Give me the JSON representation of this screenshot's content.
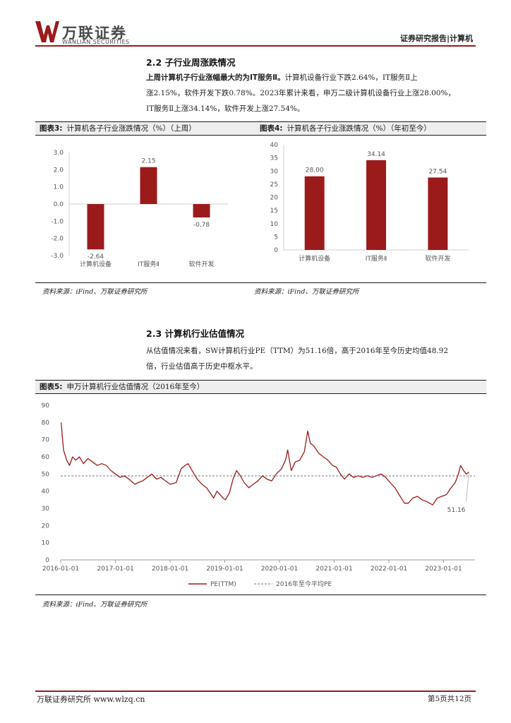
{
  "header": {
    "logo_cn": "万联证券",
    "logo_en": "WANLIAN SECURITIES",
    "report_tag": "证券研究报告|计算机",
    "brand_color": "#9b1b1b"
  },
  "section_2_2": {
    "title": "2.2  子行业周涨跌情况",
    "lead": "上周计算机子行业涨幅最大的为IT服务Ⅱ。",
    "body_1": "计算机设备行业下跌2.64%，IT服务Ⅱ上",
    "body_2": "涨2.15%，软件开发下跌0.78%。2023年累计来看，申万二级计算机设备行业上涨28.00%，",
    "body_3": "IT服务Ⅱ上涨34.14%，软件开发上涨27.54%。"
  },
  "figure3": {
    "label": "图表3:",
    "title": "计算机各子行业涨跌情况（%）（上周）",
    "source": "资料来源：iFind、万联证券研究所"
  },
  "figure4": {
    "label": "图表4:",
    "title": "计算机各子行业涨跌情况（%）（年初至今）",
    "source": "资料来源：iFind、万联证券研究所"
  },
  "section_2_3": {
    "title": "2.3  计算机行业估值情况",
    "body_1": "从估值情况来看，SW计算机行业PE（TTM）为51.16倍，高于2016年至今历史均值48.92",
    "body_2": "倍，行业估值高于历史中枢水平。"
  },
  "figure5": {
    "label": "图表5:",
    "title": "申万计算机行业估值情况（2016年至今）",
    "source": "资料来源：iFind、万联证券研究所"
  },
  "footer": {
    "left": "万联证券研究所  www.wlzq.cn",
    "right": "第5页共12页"
  },
  "chart_data": [
    {
      "type": "bar",
      "categories": [
        "计算机设备",
        "IT服务Ⅱ",
        "软件开发"
      ],
      "values": [
        -2.64,
        2.15,
        -0.78
      ],
      "value_labels": [
        "-2.64",
        "2.15",
        "-0.78"
      ],
      "ylim": [
        -3.0,
        3.0
      ],
      "yticks": [
        3.0,
        2.0,
        1.0,
        0.0,
        -1.0,
        -2.0,
        -3.0
      ],
      "ytick_labels": [
        "3.0",
        "2.0",
        "1.0",
        "0.0",
        "-1.0",
        "-2.0",
        "-3.0"
      ],
      "color": "#9b1b1b",
      "grid": false
    },
    {
      "type": "bar",
      "categories": [
        "计算机设备",
        "IT服务Ⅱ",
        "软件开发"
      ],
      "values": [
        28.0,
        34.14,
        27.54
      ],
      "value_labels": [
        "28.00",
        "34.14",
        "27.54"
      ],
      "ylim": [
        0,
        40
      ],
      "yticks": [
        40,
        35,
        30,
        25,
        20,
        15,
        10,
        5,
        0
      ],
      "color": "#9b1b1b",
      "grid": false
    },
    {
      "type": "line",
      "x_tick_labels": [
        "2016-01-01",
        "2017-01-01",
        "2018-01-01",
        "2019-01-01",
        "2020-01-01",
        "2021-01-01",
        "2022-01-01",
        "2023-01-01"
      ],
      "ylim": [
        0,
        90
      ],
      "yticks": [
        90,
        80,
        70,
        60,
        50,
        40,
        30,
        20,
        10,
        0
      ],
      "series": [
        {
          "name": "PE(TTM)",
          "color": "#9b1b1b",
          "points": [
            [
              "2016-01-04",
              80
            ],
            [
              "2016-01-20",
              64
            ],
            [
              "2016-02-10",
              58
            ],
            [
              "2016-02-29",
              55
            ],
            [
              "2016-03-20",
              60
            ],
            [
              "2016-04-10",
              58
            ],
            [
              "2016-05-05",
              60
            ],
            [
              "2016-06-01",
              56
            ],
            [
              "2016-07-01",
              59
            ],
            [
              "2016-08-01",
              57
            ],
            [
              "2016-09-01",
              55
            ],
            [
              "2016-10-01",
              56
            ],
            [
              "2016-11-01",
              55
            ],
            [
              "2016-12-01",
              52
            ],
            [
              "2017-01-01",
              50
            ],
            [
              "2017-02-01",
              48
            ],
            [
              "2017-03-01",
              49
            ],
            [
              "2017-04-01",
              47
            ],
            [
              "2017-05-10",
              44
            ],
            [
              "2017-06-01",
              45
            ],
            [
              "2017-07-01",
              46
            ],
            [
              "2017-08-01",
              48
            ],
            [
              "2017-09-01",
              50
            ],
            [
              "2017-10-01",
              47
            ],
            [
              "2017-11-01",
              48
            ],
            [
              "2017-12-01",
              46
            ],
            [
              "2018-01-01",
              44
            ],
            [
              "2018-02-10",
              45
            ],
            [
              "2018-03-15",
              53
            ],
            [
              "2018-04-10",
              55
            ],
            [
              "2018-05-01",
              56
            ],
            [
              "2018-06-10",
              50
            ],
            [
              "2018-07-01",
              47
            ],
            [
              "2018-08-01",
              44
            ],
            [
              "2018-09-01",
              42
            ],
            [
              "2018-10-18",
              36
            ],
            [
              "2018-11-10",
              40
            ],
            [
              "2018-12-20",
              36
            ],
            [
              "2019-01-05",
              35
            ],
            [
              "2019-02-01",
              39
            ],
            [
              "2019-02-25",
              47
            ],
            [
              "2019-03-20",
              52
            ],
            [
              "2019-04-15",
              49
            ],
            [
              "2019-05-10",
              45
            ],
            [
              "2019-06-10",
              42
            ],
            [
              "2019-07-10",
              44
            ],
            [
              "2019-08-10",
              46
            ],
            [
              "2019-09-10",
              49
            ],
            [
              "2019-10-10",
              47
            ],
            [
              "2019-11-10",
              46
            ],
            [
              "2019-12-10",
              50
            ],
            [
              "2020-01-15",
              53
            ],
            [
              "2020-02-10",
              58
            ],
            [
              "2020-02-25",
              64
            ],
            [
              "2020-03-20",
              52
            ],
            [
              "2020-04-15",
              57
            ],
            [
              "2020-05-15",
              58
            ],
            [
              "2020-06-15",
              63
            ],
            [
              "2020-07-08",
              75
            ],
            [
              "2020-07-25",
              68
            ],
            [
              "2020-08-20",
              66
            ],
            [
              "2020-09-20",
              62
            ],
            [
              "2020-10-20",
              60
            ],
            [
              "2020-11-20",
              58
            ],
            [
              "2020-12-20",
              55
            ],
            [
              "2021-01-15",
              54
            ],
            [
              "2021-02-10",
              50
            ],
            [
              "2021-03-10",
              47
            ],
            [
              "2021-04-10",
              50
            ],
            [
              "2021-05-10",
              48
            ],
            [
              "2021-06-10",
              49
            ],
            [
              "2021-07-10",
              48
            ],
            [
              "2021-08-10",
              49
            ],
            [
              "2021-09-10",
              48
            ],
            [
              "2021-10-10",
              49
            ],
            [
              "2021-11-10",
              50
            ],
            [
              "2021-12-10",
              48
            ],
            [
              "2022-01-10",
              45
            ],
            [
              "2022-02-10",
              42
            ],
            [
              "2022-03-10",
              38
            ],
            [
              "2022-04-15",
              33
            ],
            [
              "2022-05-10",
              33
            ],
            [
              "2022-06-10",
              36
            ],
            [
              "2022-07-10",
              37
            ],
            [
              "2022-08-10",
              35
            ],
            [
              "2022-09-10",
              34
            ],
            [
              "2022-10-20",
              32
            ],
            [
              "2022-11-20",
              36
            ],
            [
              "2022-12-20",
              37
            ],
            [
              "2023-01-20",
              38
            ],
            [
              "2023-02-20",
              42
            ],
            [
              "2023-03-20",
              45
            ],
            [
              "2023-04-10",
              50
            ],
            [
              "2023-04-25",
              55
            ],
            [
              "2023-05-15",
              52
            ],
            [
              "2023-06-01",
              50
            ],
            [
              "2023-06-20",
              51.16
            ]
          ]
        },
        {
          "name": "2016年至今平均PE",
          "style": "dashed",
          "color": "#777777",
          "value": 48.92
        }
      ],
      "end_label": "51.16"
    }
  ]
}
